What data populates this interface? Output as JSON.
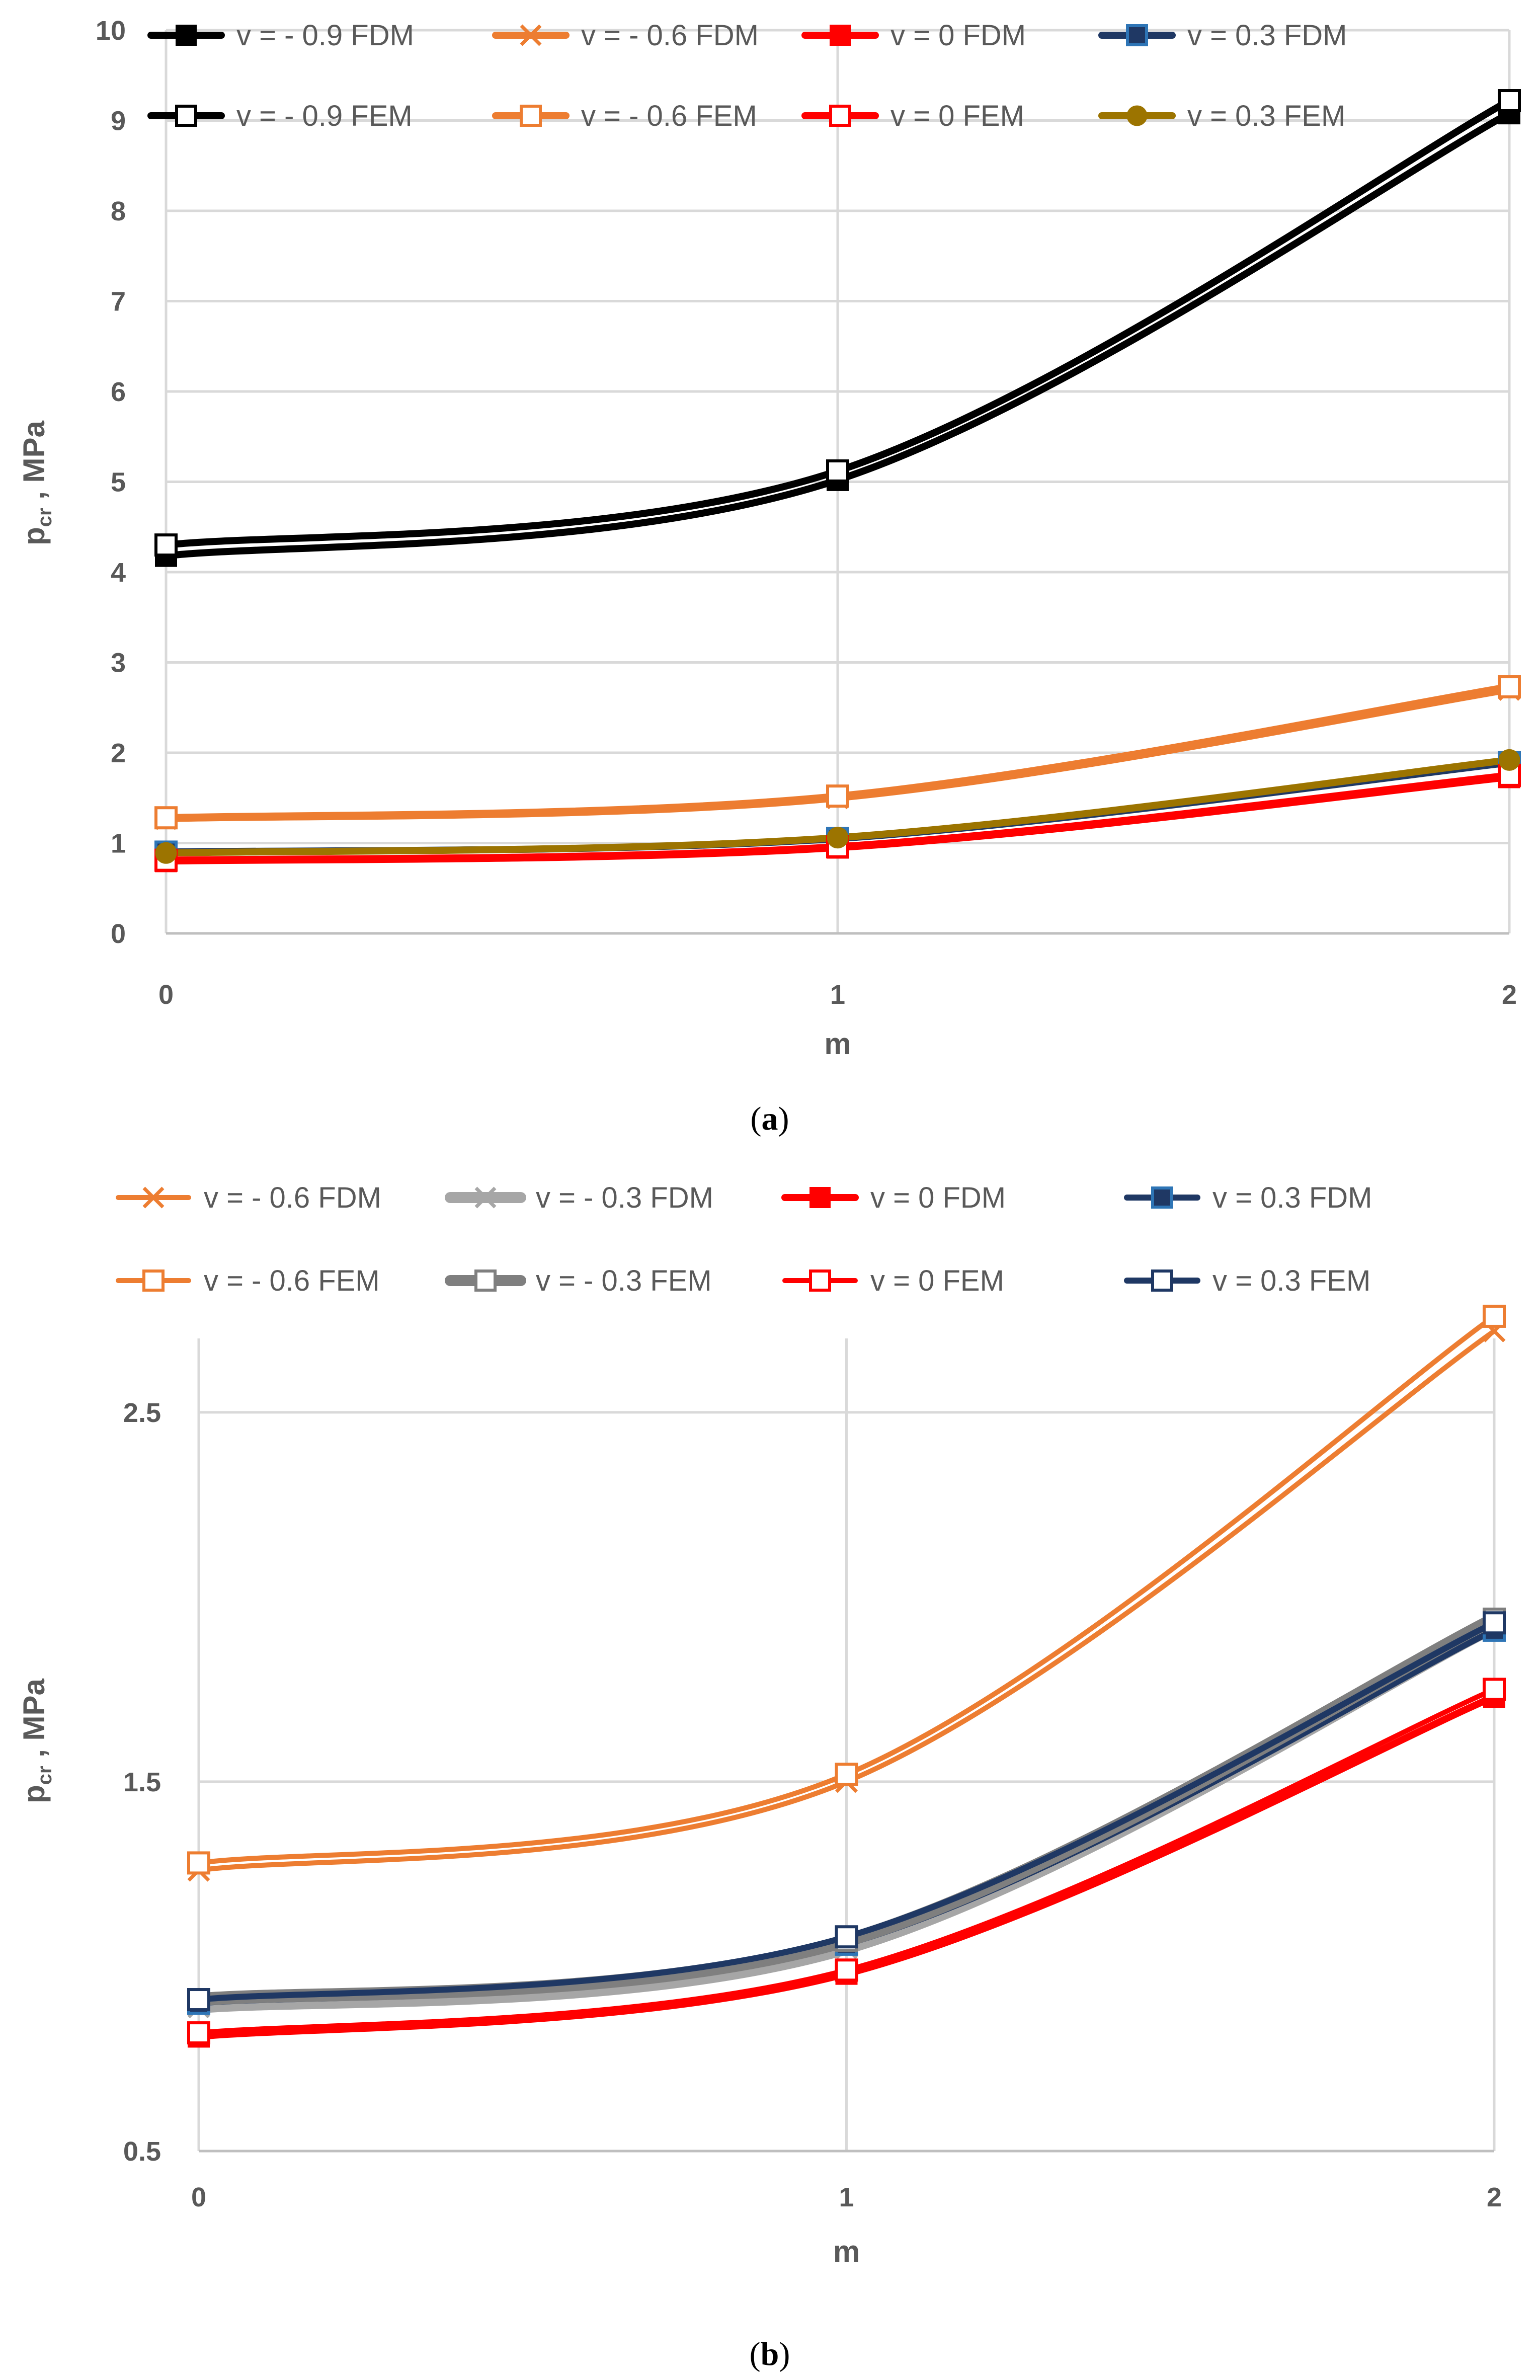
{
  "chart_data": [
    {
      "id": "a",
      "type": "line",
      "caption_letter": "a",
      "xlabel": "m",
      "ylabel": "p",
      "ylabel_sub": "cr",
      "ylabel_unit": " , MPa",
      "x": [
        0,
        1,
        2
      ],
      "xticks": [
        "0",
        "1",
        "2"
      ],
      "ylim": [
        0,
        10
      ],
      "yticks": [
        "0",
        "1",
        "2",
        "3",
        "4",
        "5",
        "6",
        "7",
        "8",
        "9",
        "10"
      ],
      "series": [
        {
          "name": "v = - 0.9 FDM",
          "values": [
            4.18,
            5.02,
            9.08
          ],
          "color": "#000000",
          "marker": "filled-square",
          "width": 14
        },
        {
          "name": "v = - 0.6 FDM",
          "values": [
            1.27,
            1.5,
            2.7
          ],
          "color": "#ed7d31",
          "marker": "x",
          "width": 14
        },
        {
          "name": "v = 0 FDM",
          "values": [
            0.8,
            0.95,
            1.73
          ],
          "color": "#ff0000",
          "marker": "filled-square",
          "width": 14
        },
        {
          "name": "v = 0.3 FDM",
          "values": [
            0.9,
            1.05,
            1.89
          ],
          "color": "#1f3864",
          "marker": "filled-square-blue",
          "width": 14
        },
        {
          "name": "v = - 0.9 FEM",
          "values": [
            4.3,
            5.12,
            9.22
          ],
          "color": "#000000",
          "marker": "open-square",
          "width": 14
        },
        {
          "name": "v = - 0.6 FEM",
          "values": [
            1.28,
            1.52,
            2.73
          ],
          "color": "#ed7d31",
          "marker": "open-square",
          "width": 14
        },
        {
          "name": "v = 0 FEM",
          "values": [
            0.81,
            0.96,
            1.75
          ],
          "color": "#ff0000",
          "marker": "open-square",
          "width": 14
        },
        {
          "name": "v = 0.3 FEM",
          "values": [
            0.89,
            1.06,
            1.92
          ],
          "color": "#9c7400",
          "marker": "filled-circle",
          "width": 14
        }
      ]
    },
    {
      "id": "b",
      "type": "line",
      "caption_letter": "b",
      "xlabel": "m",
      "ylabel": "p",
      "ylabel_sub": "cr",
      "ylabel_unit": " , MPa",
      "x": [
        0,
        1,
        2
      ],
      "xticks": [
        "0",
        "1",
        "2"
      ],
      "ylim": [
        0.5,
        2.7
      ],
      "yticks": [
        "0.5",
        "1.5",
        "2.5"
      ],
      "ytick_values": [
        0.5,
        1.5,
        2.5
      ],
      "series": [
        {
          "name": "v = - 0.6 FDM",
          "values": [
            1.26,
            1.5,
            2.72
          ],
          "color": "#ed7d31",
          "marker": "x",
          "width": 10
        },
        {
          "name": "v = - 0.3 FDM",
          "values": [
            0.89,
            1.05,
            1.92
          ],
          "color": "#a6a6a6",
          "marker": "x",
          "width": 26
        },
        {
          "name": "v = 0 FDM",
          "values": [
            0.81,
            0.98,
            1.73
          ],
          "color": "#ff0000",
          "marker": "filled-square",
          "width": 14
        },
        {
          "name": "v = 0.3 FDM",
          "values": [
            0.9,
            1.06,
            1.91
          ],
          "color": "#1f3864",
          "marker": "filled-square-blue",
          "width": 12
        },
        {
          "name": "v = - 0.6 FEM",
          "values": [
            1.28,
            1.52,
            2.76
          ],
          "color": "#ed7d31",
          "marker": "open-square",
          "width": 10
        },
        {
          "name": "v = - 0.3 FEM",
          "values": [
            0.91,
            1.07,
            1.94
          ],
          "color": "#7f7f7f",
          "marker": "open-square",
          "width": 26
        },
        {
          "name": "v = 0 FEM",
          "values": [
            0.82,
            0.99,
            1.75
          ],
          "color": "#ff0000",
          "marker": "open-square",
          "width": 10
        },
        {
          "name": "v = 0.3 FEM",
          "values": [
            0.91,
            1.08,
            1.93
          ],
          "color": "#1f3864",
          "marker": "open-square",
          "width": 12
        }
      ]
    }
  ]
}
